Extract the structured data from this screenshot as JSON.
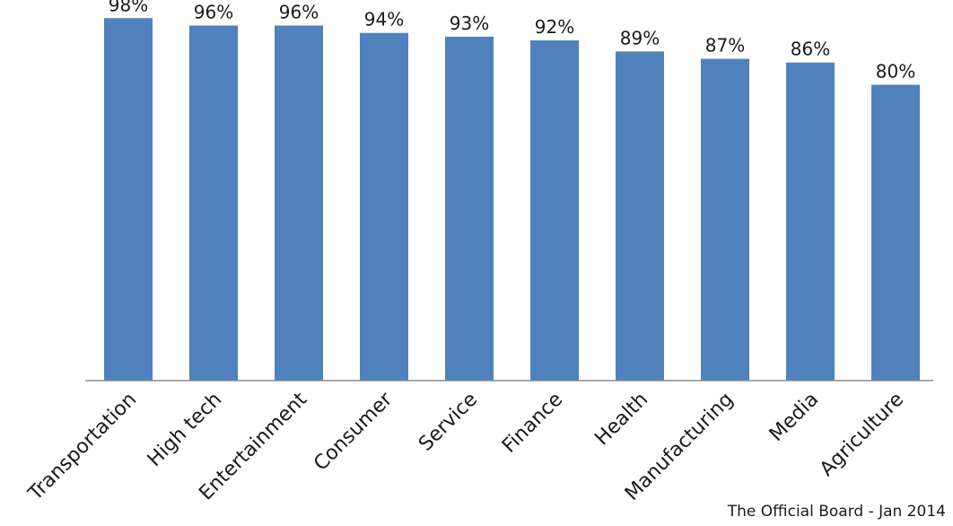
{
  "chart_data": {
    "type": "bar",
    "categories": [
      "Transportation",
      "High tech",
      "Entertainment",
      "Consumer",
      "Service",
      "Finance",
      "Health",
      "Manufacturing",
      "Media",
      "Agriculture"
    ],
    "values": [
      98,
      96,
      96,
      94,
      93,
      92,
      89,
      87,
      86,
      80
    ],
    "value_labels": [
      "98%",
      "96%",
      "96%",
      "94%",
      "93%",
      "92%",
      "89%",
      "87%",
      "86%",
      "80%"
    ],
    "ylim": [
      0,
      100
    ],
    "title": "",
    "xlabel": "",
    "ylabel": "",
    "grid": false,
    "bar_color": "#4f81bd"
  },
  "source_note": "The Official Board  - Jan 2014"
}
